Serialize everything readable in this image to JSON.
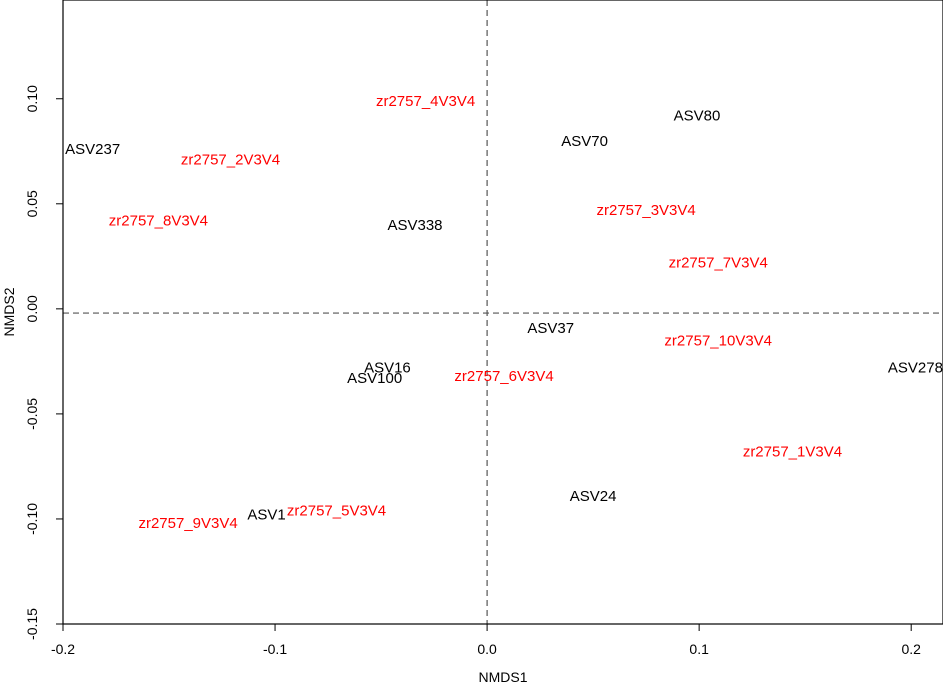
{
  "chart_data": {
    "type": "scatter",
    "title": "",
    "xlabel": "NMDS1",
    "ylabel": "NMDS2",
    "xlim": [
      -0.2,
      0.215
    ],
    "ylim": [
      -0.15,
      0.147
    ],
    "xticks": [
      -0.2,
      -0.1,
      0.0,
      0.1,
      0.2
    ],
    "xtick_labels": [
      "-0.2",
      "-0.1",
      "0.0",
      "0.1",
      "0.2"
    ],
    "yticks": [
      -0.15,
      -0.1,
      -0.05,
      0.0,
      0.05,
      0.1
    ],
    "ytick_labels": [
      "-0.15",
      "-0.10",
      "-0.05",
      "0.00",
      "0.05",
      "0.10"
    ],
    "reference_lines": {
      "x": 0.0,
      "y": -0.002
    },
    "grid": false,
    "colors": {
      "samples": "#ff0000",
      "species": "#000000",
      "axes": "#000000",
      "reference": "#555555"
    },
    "series": [
      {
        "role": "samples",
        "points": [
          {
            "label": "zr2757_4V3V4",
            "x": -0.029,
            "y": 0.099
          },
          {
            "label": "zr2757_2V3V4",
            "x": -0.121,
            "y": 0.071
          },
          {
            "label": "zr2757_8V3V4",
            "x": -0.155,
            "y": 0.042
          },
          {
            "label": "zr2757_3V3V4",
            "x": 0.075,
            "y": 0.047
          },
          {
            "label": "zr2757_7V3V4",
            "x": 0.109,
            "y": 0.022
          },
          {
            "label": "zr2757_10V3V4",
            "x": 0.109,
            "y": -0.015
          },
          {
            "label": "zr2757_6V3V4",
            "x": 0.008,
            "y": -0.032
          },
          {
            "label": "zr2757_1V3V4",
            "x": 0.144,
            "y": -0.068
          },
          {
            "label": "zr2757_5V3V4",
            "x": -0.071,
            "y": -0.096
          },
          {
            "label": "zr2757_9V3V4",
            "x": -0.141,
            "y": -0.102
          }
        ]
      },
      {
        "role": "species",
        "points": [
          {
            "label": "ASV80",
            "x": 0.099,
            "y": 0.092
          },
          {
            "label": "ASV70",
            "x": 0.046,
            "y": 0.08
          },
          {
            "label": "ASV237",
            "x": -0.186,
            "y": 0.076
          },
          {
            "label": "ASV338",
            "x": -0.034,
            "y": 0.04
          },
          {
            "label": "ASV37",
            "x": 0.03,
            "y": -0.009
          },
          {
            "label": "ASV278",
            "x": 0.202,
            "y": -0.028
          },
          {
            "label": "ASV16",
            "x": -0.047,
            "y": -0.028
          },
          {
            "label": "ASV100",
            "x": -0.053,
            "y": -0.033
          },
          {
            "label": "ASV24",
            "x": 0.05,
            "y": -0.089
          },
          {
            "label": "ASV1",
            "x": -0.104,
            "y": -0.098
          }
        ]
      }
    ]
  }
}
